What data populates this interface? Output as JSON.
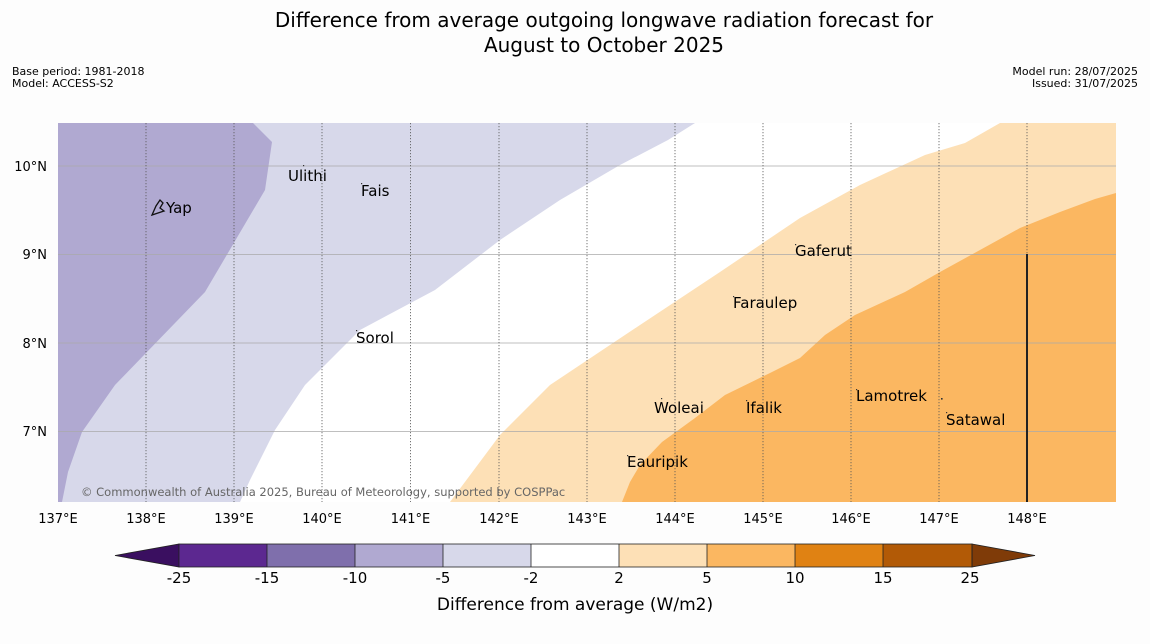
{
  "title": {
    "line1": "Difference from average outgoing longwave radiation forecast for",
    "line2": "August to October 2025"
  },
  "meta": {
    "base_period": "Base period: 1981-2018",
    "model": "Model: ACCESS-S2",
    "model_run": "Model run: 28/07/2025",
    "issued": "Issued: 31/07/2025"
  },
  "map": {
    "lat_labels": [
      "10°N",
      "9°N",
      "8°N",
      "7°N"
    ],
    "lon_labels": [
      "137°E",
      "138°E",
      "139°E",
      "140°E",
      "141°E",
      "142°E",
      "143°E",
      "144°E",
      "145°E",
      "146°E",
      "147°E",
      "148°E"
    ],
    "places": [
      "Ulithi",
      "Fais",
      "Yap",
      "Gaferut",
      "Faraulep",
      "Sorol",
      "Woleai",
      "Ifalik",
      "Lamotrek",
      "Satawal",
      "Eauripik"
    ],
    "copyright": "© Commonwealth of Australia 2025, Bureau of Meteorology, supported by COSPPac"
  },
  "legend": {
    "ticks": [
      "-25",
      "-15",
      "-10",
      "-5",
      "-2",
      "2",
      "5",
      "10",
      "15",
      "25"
    ],
    "label": "Difference from average (W/m2)",
    "colors": [
      "#4d1a86",
      "#5c2890",
      "#7f6fac",
      "#b0a9d1",
      "#d7d8ea",
      "#ffffff",
      "#fde0b6",
      "#fbb761",
      "#e08213",
      "#b25a06",
      "#7f3b08"
    ]
  }
}
